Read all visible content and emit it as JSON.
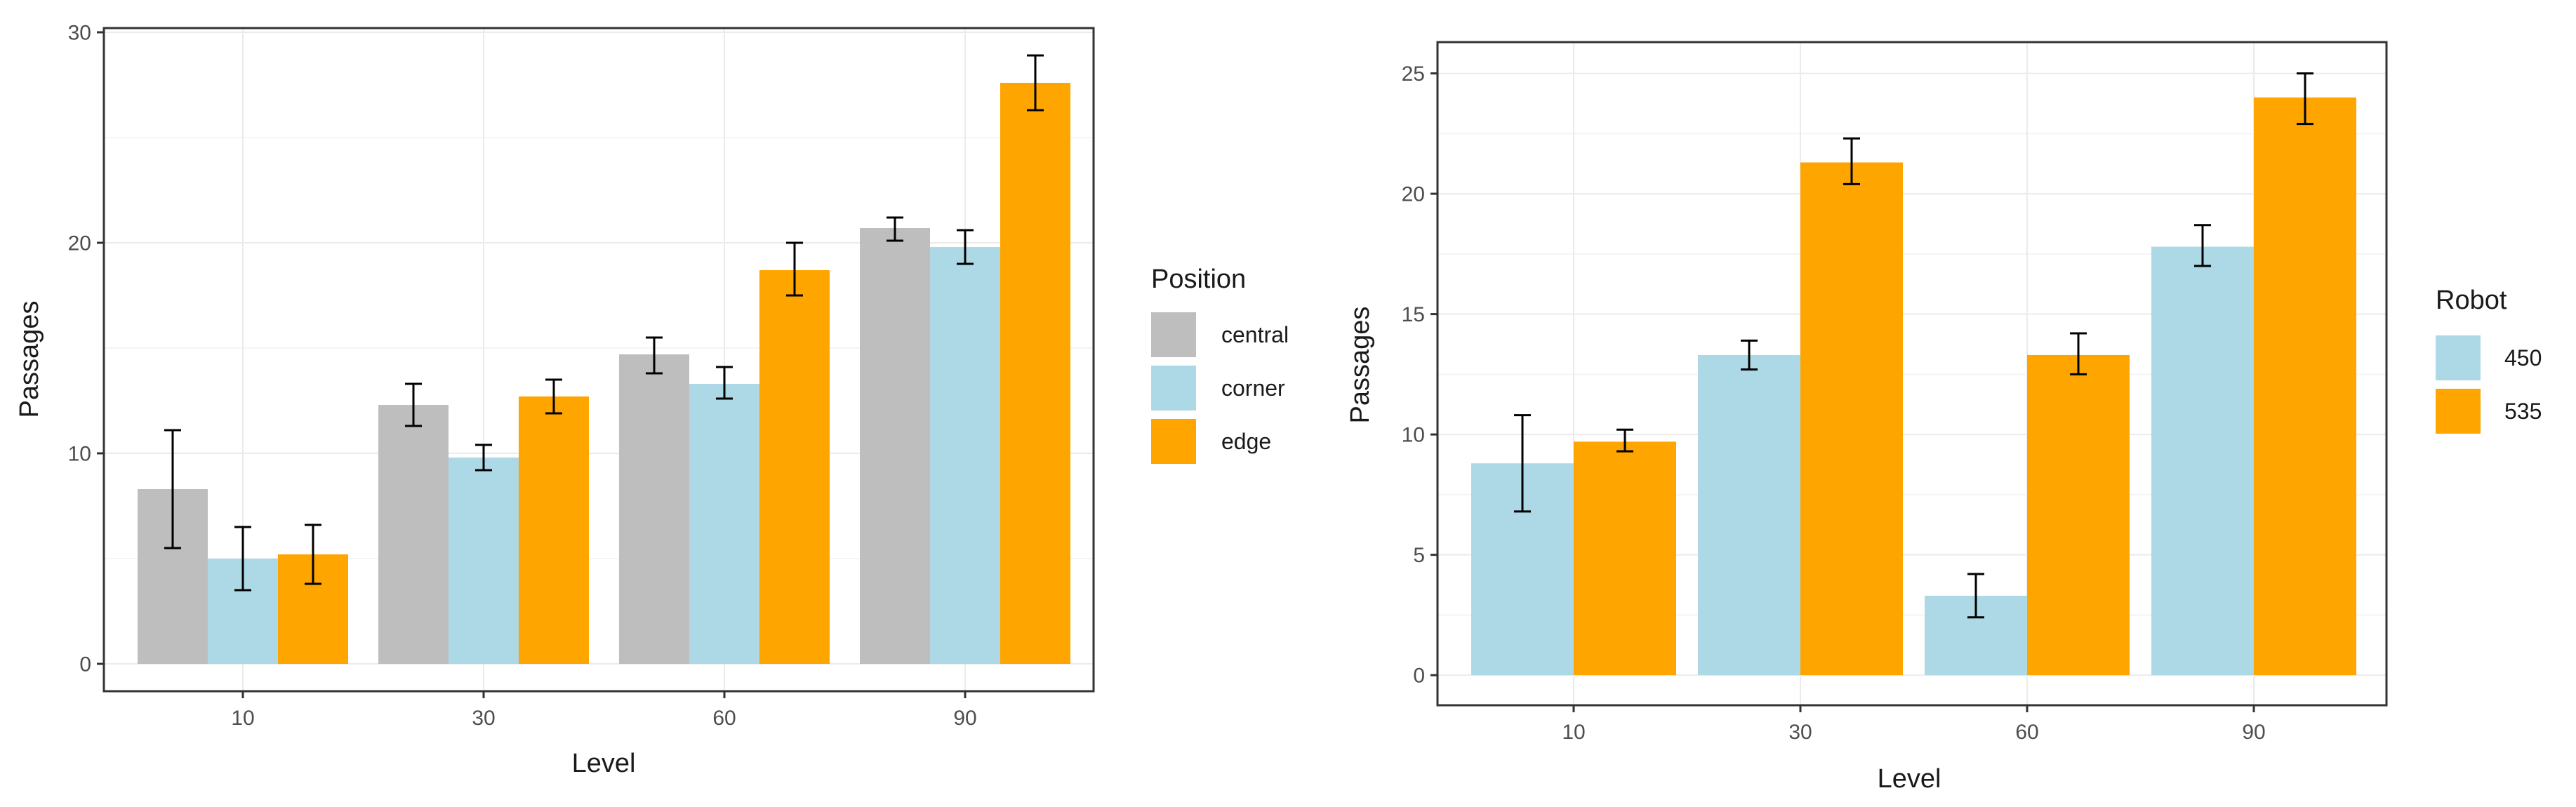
{
  "colors": {
    "central": "#bebebe",
    "corner": "#add8e6",
    "edge": "#ffa500",
    "r450": "#add8e6",
    "r535": "#ffa500",
    "grid_major": "#ebebeb",
    "grid_minor": "#f5f5f5",
    "panel_border": "#333333",
    "errorbar": "#000000"
  },
  "chart_data": [
    {
      "type": "bar",
      "title": "",
      "xlabel": "Level",
      "ylabel": "Passages",
      "categories": [
        "10",
        "30",
        "60",
        "90"
      ],
      "ylim": [
        -1.3,
        30.2
      ],
      "yticks": [
        0,
        10,
        20,
        30
      ],
      "ytick_labels": [
        "0",
        "10",
        "20",
        "30"
      ],
      "grid": true,
      "legend": {
        "title": "Position",
        "position": "right",
        "entries": [
          "central",
          "corner",
          "edge"
        ]
      },
      "series": [
        {
          "name": "central",
          "color_key": "central",
          "values": [
            8.3,
            12.3,
            14.7,
            20.7
          ],
          "error_low": [
            5.5,
            11.3,
            13.8,
            20.1
          ],
          "error_high": [
            11.1,
            13.3,
            15.5,
            21.2
          ]
        },
        {
          "name": "corner",
          "color_key": "corner",
          "values": [
            5.0,
            9.8,
            13.3,
            19.8
          ],
          "error_low": [
            3.5,
            9.2,
            12.6,
            19.0
          ],
          "error_high": [
            6.5,
            10.4,
            14.1,
            20.6
          ]
        },
        {
          "name": "edge",
          "color_key": "edge",
          "values": [
            5.2,
            12.7,
            18.7,
            27.6
          ],
          "error_low": [
            3.8,
            11.9,
            17.5,
            26.3
          ],
          "error_high": [
            6.6,
            13.5,
            20.0,
            28.9
          ]
        }
      ]
    },
    {
      "type": "bar",
      "title": "",
      "xlabel": "Level",
      "ylabel": "Passages",
      "categories": [
        "10",
        "30",
        "60",
        "90"
      ],
      "ylim": [
        -1.25,
        26.3
      ],
      "yticks": [
        0,
        5,
        10,
        15,
        20,
        25
      ],
      "ytick_labels": [
        "0",
        "5",
        "10",
        "15",
        "20",
        "25"
      ],
      "grid": true,
      "legend": {
        "title": "Robot",
        "position": "right",
        "entries": [
          "450",
          "535"
        ]
      },
      "series": [
        {
          "name": "450",
          "color_key": "r450",
          "values": [
            8.8,
            13.3,
            3.3,
            17.8
          ],
          "error_low": [
            6.8,
            12.7,
            2.4,
            17.0
          ],
          "error_high": [
            10.8,
            13.9,
            4.2,
            18.7
          ]
        },
        {
          "name": "535",
          "color_key": "r535",
          "values": [
            9.7,
            21.3,
            13.3,
            24.0
          ],
          "error_low": [
            9.3,
            20.4,
            12.5,
            22.9
          ],
          "error_high": [
            10.2,
            22.3,
            14.2,
            25.0
          ]
        }
      ]
    }
  ]
}
